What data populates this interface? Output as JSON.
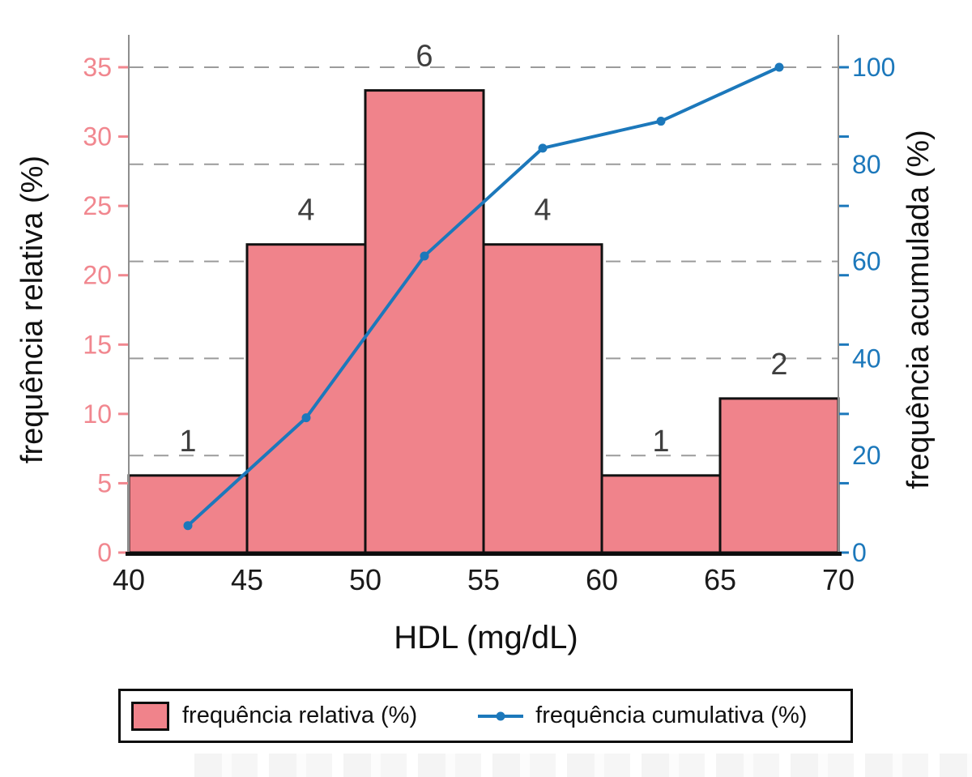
{
  "chart_data": {
    "type": "bar+line (histogram with cumulative frequency, dual y-axes)",
    "xlabel": "HDL (mg/dL)",
    "ylabel_left": "frequência relativa (%)",
    "ylabel_right": "frequência acumulada (%)",
    "xlim": [
      40,
      70
    ],
    "ylim_left": [
      0,
      35
    ],
    "ylim_right": [
      0,
      100
    ],
    "x_ticks": [
      40,
      45,
      50,
      55,
      60,
      65,
      70
    ],
    "y_ticks_left": [
      0,
      5,
      10,
      15,
      20,
      25,
      30,
      35
    ],
    "y_ticks_right": [
      0,
      20,
      40,
      60,
      80,
      100
    ],
    "grid": "horizontal dashed gridlines at right-axis tick levels (20,40,60,80,100)",
    "bin_edges": [
      40,
      45,
      50,
      55,
      60,
      65,
      70
    ],
    "bars": {
      "name": "frequência relativa (%)",
      "counts": [
        1,
        4,
        6,
        4,
        1,
        2
      ],
      "values_pct": [
        5.56,
        22.22,
        33.33,
        22.22,
        5.56,
        11.11
      ],
      "bar_labels": [
        "1",
        "4",
        "6",
        "4",
        "1",
        "2"
      ]
    },
    "line": {
      "name": "frequência cumulativa (%)",
      "x": [
        42.5,
        47.5,
        52.5,
        57.5,
        62.5,
        67.5
      ],
      "values_pct": [
        5.56,
        27.78,
        61.11,
        83.33,
        88.89,
        100
      ]
    },
    "legend_position": "bottom, boxed"
  },
  "legend": {
    "items": [
      {
        "label": "frequência relativa (%)",
        "marker": "pink-square-swatch"
      },
      {
        "label": "frequência cumulativa (%)",
        "marker": "blue-line-with-dot"
      }
    ]
  },
  "colors": {
    "bar_fill": "#F0838B",
    "bar_border": "#111111",
    "line_blue": "#1C78BB",
    "left_tick_text": "#F1878F",
    "right_tick_text": "#1C78BB",
    "x_tick_text": "#1A1A1A",
    "count_label": "#3F3F3F",
    "grid_line": "#9B9B9B",
    "axis_line": "#8E8E8E",
    "x_axis_line": "#0D0D0D",
    "axis_title": "#111111"
  }
}
